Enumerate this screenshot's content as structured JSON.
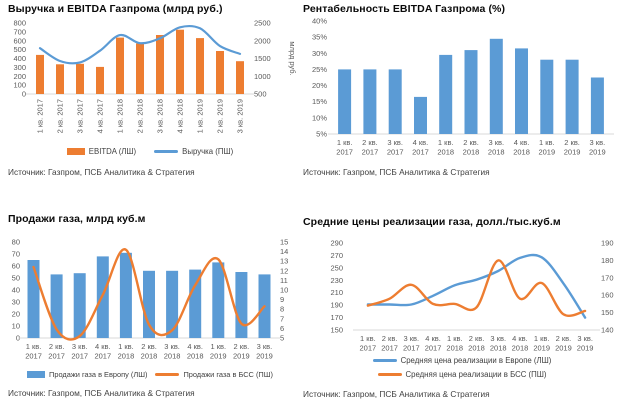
{
  "page": {
    "background": "#ffffff"
  },
  "colors": {
    "orange": "#ED7D31",
    "blue": "#5B9BD5",
    "axis_text": "#595959",
    "title_text": "#0a0a0a",
    "baseline": "#D9D9D9"
  },
  "chart_data": [
    {
      "type": "bar+line",
      "title": "Выручка и EBITDA Газпрома (млрд руб.)",
      "categories": [
        "1 кв. 2017",
        "2 кв. 2017",
        "3 кв. 2017",
        "4 кв. 2017",
        "1 кв. 2018",
        "2 кв. 2018",
        "3 кв. 2018",
        "4 кв. 2018",
        "1 кв. 2019",
        "2 кв. 2019",
        "3 кв. 2019"
      ],
      "series": [
        {
          "name": "EBITDA (ЛШ)",
          "kind": "bar",
          "axis": "left",
          "color": "#ED7D31",
          "values": [
            440,
            335,
            340,
            305,
            635,
            570,
            665,
            725,
            630,
            485,
            370
          ]
        },
        {
          "name": "Выручка (ПШ)",
          "kind": "line",
          "axis": "right",
          "color": "#5B9BD5",
          "values": [
            1790,
            1430,
            1390,
            1720,
            2160,
            1930,
            2070,
            2380,
            2350,
            1850,
            1630
          ]
        }
      ],
      "axes": {
        "left": {
          "min": 0,
          "max": 800,
          "ticks": [
            "800",
            "700",
            "600",
            "500",
            "400",
            "300",
            "200",
            "100",
            "0"
          ]
        },
        "right": {
          "min": 500,
          "max": 2500,
          "ticks": [
            "2500",
            "2000",
            "1500",
            "1000",
            "500"
          ],
          "title": "млрд руб."
        }
      },
      "legend_position": "bottom",
      "x_label_style": "vertical",
      "source": "Источник: Газпром, ПСБ Аналитика & Стратегия"
    },
    {
      "type": "bar",
      "title": "Рентабельность EBITDA Газпрома (%)",
      "categories": [
        "1 кв. 2017",
        "2 кв. 2017",
        "3 кв. 2017",
        "4 кв. 2017",
        "1 кв. 2018",
        "2 кв. 2018",
        "3 кв. 2018",
        "4 кв. 2018",
        "1 кв. 2019",
        "2 кв. 2019",
        "3 кв. 2019"
      ],
      "series": [
        {
          "name": "Рентабельность EBITDA",
          "kind": "bar",
          "axis": "left",
          "color": "#5B9BD5",
          "values": [
            25,
            25,
            25,
            16.5,
            29.5,
            31,
            34.5,
            31.5,
            28,
            28,
            22.5
          ]
        }
      ],
      "axes": {
        "left": {
          "min": 5,
          "max": 40,
          "ticks": [
            "40%",
            "35%",
            "30%",
            "25%",
            "20%",
            "15%",
            "10%",
            "5%"
          ]
        }
      },
      "legend_position": "none",
      "x_label_style": "two-line",
      "source": "Источник: Газпром, ПСБ Аналитика & Стратегия"
    },
    {
      "type": "bar+line",
      "title": "Продажи газа, млрд куб.м",
      "categories": [
        "1 кв. 2017",
        "2 кв. 2017",
        "3 кв. 2017",
        "4 кв. 2017",
        "1 кв. 2018",
        "2 кв. 2018",
        "3 кв. 2018",
        "4 кв. 2018",
        "1 кв. 2019",
        "2 кв. 2019",
        "3 кв. 2019"
      ],
      "series": [
        {
          "name": "Продажи газа в Европу (ЛШ)",
          "kind": "bar",
          "axis": "left",
          "color": "#5B9BD5",
          "values": [
            65,
            53,
            54,
            68,
            71,
            56,
            56,
            57,
            63,
            55,
            53
          ]
        },
        {
          "name": "Продажи газа в БСС (ПШ)",
          "kind": "line",
          "axis": "right",
          "color": "#ED7D31",
          "values": [
            12.4,
            5.9,
            5.2,
            9.5,
            14.2,
            6.4,
            5.8,
            10.5,
            13.2,
            6.5,
            8.3
          ]
        }
      ],
      "axes": {
        "left": {
          "min": 0,
          "max": 80,
          "ticks": [
            "80",
            "70",
            "60",
            "50",
            "40",
            "30",
            "20",
            "10",
            "0"
          ]
        },
        "right": {
          "min": 5,
          "max": 15,
          "ticks": [
            "15",
            "14",
            "13",
            "12",
            "11",
            "10",
            "9",
            "8",
            "7",
            "6",
            "5"
          ]
        }
      },
      "legend_position": "bottom",
      "x_label_style": "two-line",
      "source": "Источник: Газпром, ПСБ Аналитика & Стратегия"
    },
    {
      "type": "line",
      "title": "Средние цены реализации газа, долл./тыс.куб.м",
      "categories": [
        "1 кв. 2017",
        "2 кв. 2017",
        "3 кв. 2017",
        "4 кв. 2017",
        "1 кв. 2018",
        "2 кв. 2018",
        "3 кв. 2018",
        "4 кв. 2018",
        "1 кв. 2019",
        "2 кв. 2019",
        "3 кв. 2019"
      ],
      "series": [
        {
          "name": "Средняя цена реализации в Европе (ЛШ)",
          "kind": "line",
          "axis": "left",
          "color": "#5B9BD5",
          "values": [
            191,
            191,
            191,
            205,
            222,
            231,
            245,
            266,
            267,
            225,
            170
          ]
        },
        {
          "name": "Средняя цена реализации в БСС (ПШ)",
          "kind": "line",
          "axis": "right",
          "color": "#ED7D31",
          "values": [
            154,
            158,
            166,
            155,
            155,
            153,
            180,
            158,
            167,
            149,
            151
          ]
        }
      ],
      "axes": {
        "left": {
          "min": 150,
          "max": 290,
          "ticks": [
            "290",
            "270",
            "250",
            "230",
            "210",
            "190",
            "170",
            "150"
          ]
        },
        "right": {
          "min": 140,
          "max": 190,
          "ticks": [
            "190",
            "180",
            "170",
            "160",
            "150",
            "140"
          ]
        }
      },
      "legend_position": "bottom-stacked",
      "x_label_style": "two-line",
      "source": "Источник: Газпром, ПСБ Аналитика & Стратегия"
    }
  ]
}
